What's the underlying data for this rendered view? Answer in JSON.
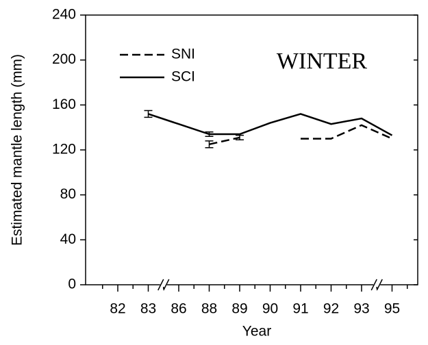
{
  "chart_data": {
    "type": "line",
    "annotation": "WINTER",
    "x_label": "Year",
    "y_label": "Estimated mantle length (mm)",
    "categories": [
      "82",
      "83",
      "86",
      "88",
      "89",
      "90",
      "91",
      "92",
      "93",
      "95"
    ],
    "series": [
      {
        "name": "SNI",
        "color": "#000000",
        "line_style": "dashed",
        "values": [
          null,
          null,
          null,
          125,
          131,
          null,
          130,
          130,
          142,
          130
        ],
        "errors": [
          null,
          null,
          null,
          3,
          2,
          null,
          null,
          null,
          null,
          null
        ]
      },
      {
        "name": "SCI",
        "color": "#000000",
        "line_style": "solid",
        "values": [
          null,
          152,
          143,
          134,
          134,
          144,
          152,
          143,
          148,
          133
        ],
        "errors": [
          null,
          3,
          null,
          2,
          null,
          null,
          null,
          null,
          null,
          null
        ]
      }
    ],
    "ylim": [
      0,
      240
    ],
    "yticks": [
      0,
      40,
      80,
      120,
      160,
      200,
      240
    ],
    "legend": "upper-left"
  }
}
